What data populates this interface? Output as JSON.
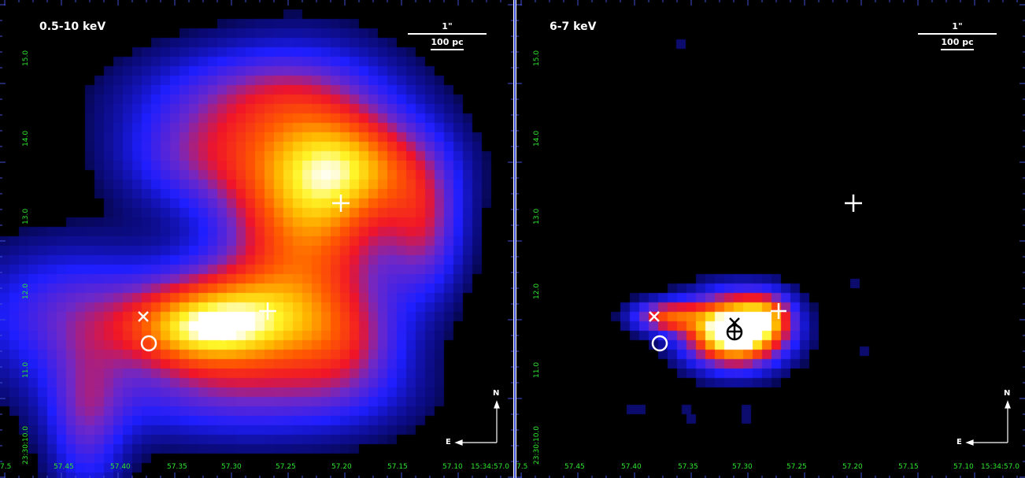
{
  "panels": [
    {
      "band_label": "0.5-10 keV",
      "scale_arcsec": "1\"",
      "scale_pc": "100 pc"
    },
    {
      "band_label": "6-7 keV",
      "scale_arcsec": "1\"",
      "scale_pc": "100 pc"
    }
  ],
  "axes": {
    "ra_ticks": [
      "57.45",
      "57.40",
      "57.35",
      "57.30",
      "57.25",
      "57.20",
      "57.15",
      "57.10",
      "15:34:57.0"
    ],
    "ra_left_edge": "7.5",
    "dec_ticks": [
      "23:30:10.0",
      "11.0",
      "12.0",
      "13.0",
      "14.0",
      "15.0"
    ]
  },
  "compass": {
    "north": "N",
    "east": "E"
  },
  "colors": {
    "tick_text": "#2ee62e",
    "frame": "#3d4fd6",
    "background": "#000000",
    "markers": "#ffffff"
  }
}
